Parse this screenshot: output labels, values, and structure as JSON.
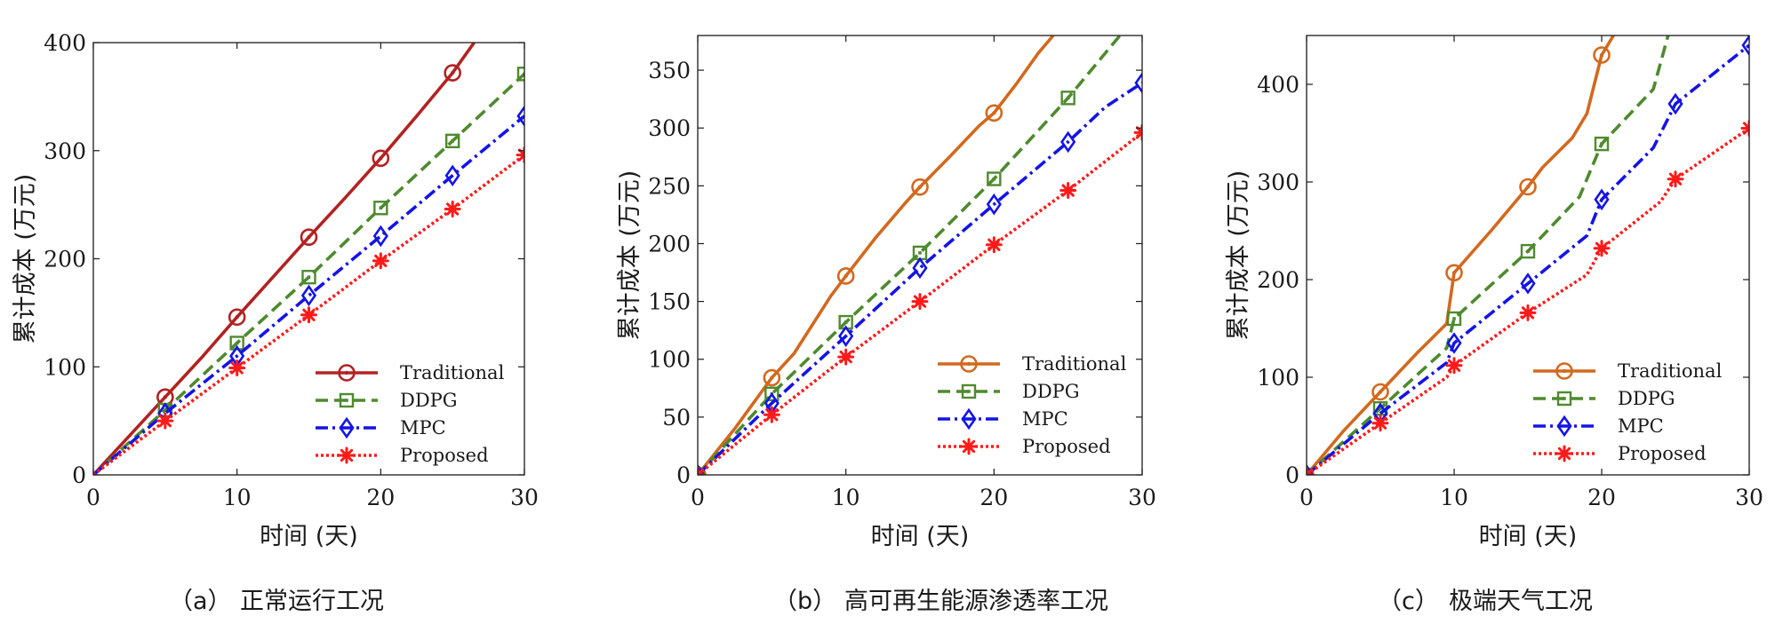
{
  "series_style": [
    {
      "name": "Traditional",
      "color": "#d2691e",
      "dash": "",
      "marker": "circle-dot"
    },
    {
      "name": "DDPG",
      "color": "#4e8a2e",
      "dash": "14,7",
      "marker": "square-dot"
    },
    {
      "name": "MPC",
      "color": "#1414e6",
      "dash": "14,5,3,5",
      "marker": "diamond"
    },
    {
      "name": "Proposed",
      "color": "#ff1a1a",
      "dash": "3,3",
      "marker": "asterisk"
    }
  ],
  "chart_data": [
    {
      "type": "line",
      "caption_id": "（a）",
      "caption_text": "正常运行工况",
      "xlabel": "时间 (天)",
      "ylabel": "累计成本 (万元)",
      "xlim": [
        0,
        30
      ],
      "ylim": [
        0,
        400
      ],
      "xticks": [
        "0",
        "10",
        "20",
        "30"
      ],
      "xtick_values": [
        0,
        10,
        20,
        30
      ],
      "yticks": [
        "0",
        "100",
        "200",
        "300",
        "400"
      ],
      "ytick_values": [
        0,
        100,
        200,
        300,
        400
      ],
      "legend": [
        "Traditional",
        "DDPG",
        "MPC",
        "Proposed"
      ],
      "series": [
        {
          "name": "Traditional",
          "color": "#b22222",
          "x": [
            0,
            2.5,
            5,
            7.5,
            10,
            12.5,
            15,
            17.5,
            20,
            22.5,
            25,
            26.5
          ],
          "y": [
            0,
            36,
            72,
            108,
            146,
            183,
            220,
            256,
            293,
            332,
            372,
            400
          ],
          "markers_x": [
            5,
            10,
            15,
            20,
            25
          ],
          "markers_y": [
            72,
            146,
            220,
            293,
            372
          ]
        },
        {
          "name": "DDPG",
          "x": [
            0,
            5,
            10,
            15,
            20,
            25,
            30
          ],
          "y": [
            0,
            60,
            122,
            183,
            247,
            309,
            371
          ],
          "markers_x": [
            5,
            10,
            15,
            20,
            25,
            30
          ],
          "markers_y": [
            60,
            122,
            183,
            247,
            309,
            371
          ]
        },
        {
          "name": "MPC",
          "x": [
            0,
            5,
            10,
            15,
            20,
            25,
            30
          ],
          "y": [
            0,
            57,
            110,
            166,
            221,
            277,
            332
          ],
          "markers_x": [
            5,
            10,
            15,
            20,
            25,
            30
          ],
          "markers_y": [
            57,
            110,
            166,
            221,
            277,
            332
          ]
        },
        {
          "name": "Proposed",
          "x": [
            0,
            5,
            10,
            15,
            20,
            25,
            30
          ],
          "y": [
            0,
            50,
            99,
            148,
            198,
            246,
            296
          ],
          "markers_x": [
            5,
            10,
            15,
            20,
            25,
            30
          ],
          "markers_y": [
            50,
            99,
            148,
            198,
            246,
            296
          ]
        }
      ]
    },
    {
      "type": "line",
      "caption_id": "（b）",
      "caption_text": "高可再生能源渗透率工况",
      "xlabel": "时间 (天)",
      "ylabel": "累计成本 (万元)",
      "xlim": [
        0,
        30
      ],
      "ylim": [
        0,
        380
      ],
      "xticks": [
        "0",
        "10",
        "20",
        "30"
      ],
      "xtick_values": [
        0,
        10,
        20,
        30
      ],
      "yticks": [
        "0",
        "50",
        "100",
        "150",
        "200",
        "250",
        "300",
        "350"
      ],
      "ytick_values": [
        0,
        50,
        100,
        150,
        200,
        250,
        300,
        350
      ],
      "legend": [
        "Traditional",
        "DDPG",
        "MPC",
        "Proposed"
      ],
      "series": [
        {
          "name": "Traditional",
          "x": [
            0,
            2.5,
            5,
            6.5,
            8,
            9,
            10,
            12,
            14,
            15,
            17,
            19,
            20,
            21.5,
            23,
            24
          ],
          "y": [
            0,
            40,
            84,
            105,
            135,
            155,
            172,
            205,
            235,
            249,
            275,
            302,
            313,
            338,
            365,
            380
          ],
          "markers_x": [
            0,
            5,
            10,
            15,
            20
          ],
          "markers_y": [
            0,
            84,
            172,
            249,
            313
          ]
        },
        {
          "name": "DDPG",
          "x": [
            0,
            5,
            10,
            15,
            20,
            25,
            28.5
          ],
          "y": [
            0,
            70,
            132,
            192,
            256,
            326,
            380
          ],
          "markers_x": [
            0,
            5,
            10,
            15,
            20,
            25
          ],
          "markers_y": [
            0,
            70,
            132,
            192,
            256,
            326
          ]
        },
        {
          "name": "MPC",
          "x": [
            0,
            5,
            10,
            15,
            20,
            25,
            27.5,
            30
          ],
          "y": [
            0,
            62,
            120,
            179,
            234,
            288,
            318,
            339
          ],
          "markers_x": [
            0,
            5,
            10,
            15,
            20,
            25,
            30
          ],
          "markers_y": [
            0,
            62,
            120,
            179,
            234,
            288,
            339
          ]
        },
        {
          "name": "Proposed",
          "x": [
            0,
            5,
            10,
            15,
            20,
            25,
            30
          ],
          "y": [
            0,
            52,
            102,
            150,
            199,
            246,
            296
          ],
          "markers_x": [
            0,
            5,
            10,
            15,
            20,
            25,
            30
          ],
          "markers_y": [
            0,
            52,
            102,
            150,
            199,
            246,
            296
          ]
        }
      ]
    },
    {
      "type": "line",
      "caption_id": "（c）",
      "caption_text": "极端天气工况",
      "xlabel": "时间 (天)",
      "ylabel": "累计成本 (万元)",
      "xlim": [
        0,
        30
      ],
      "ylim": [
        0,
        450
      ],
      "xticks": [
        "0",
        "10",
        "20",
        "30"
      ],
      "xtick_values": [
        0,
        10,
        20,
        30
      ],
      "yticks": [
        "0",
        "100",
        "200",
        "300",
        "400"
      ],
      "ytick_values": [
        0,
        100,
        200,
        300,
        400
      ],
      "legend": [
        "Traditional",
        "DDPG",
        "MPC",
        "Proposed"
      ],
      "series": [
        {
          "name": "Traditional",
          "x": [
            0,
            2.5,
            5,
            7.5,
            9.5,
            10,
            12.5,
            15,
            16,
            18,
            19,
            20,
            20.8
          ],
          "y": [
            0,
            45,
            85,
            125,
            155,
            207,
            250,
            295,
            315,
            345,
            370,
            430,
            450
          ],
          "markers_x": [
            5,
            10,
            15,
            20
          ],
          "markers_y": [
            85,
            207,
            295,
            430
          ]
        },
        {
          "name": "DDPG",
          "x": [
            0,
            5,
            9.5,
            10,
            15,
            18.5,
            20,
            23.5,
            24.5
          ],
          "y": [
            0,
            68,
            130,
            160,
            229,
            285,
            339,
            395,
            450
          ],
          "markers_x": [
            0,
            5,
            10,
            15,
            20
          ],
          "markers_y": [
            0,
            68,
            160,
            229,
            339
          ]
        },
        {
          "name": "MPC",
          "x": [
            0,
            5,
            9.5,
            10,
            15,
            19,
            20,
            23.5,
            24.5,
            25,
            30
          ],
          "y": [
            0,
            63,
            115,
            135,
            196,
            245,
            282,
            335,
            365,
            380,
            440
          ],
          "markers_x": [
            0,
            5,
            10,
            15,
            20,
            25,
            30
          ],
          "markers_y": [
            0,
            63,
            135,
            196,
            282,
            380,
            440
          ]
        },
        {
          "name": "Proposed",
          "x": [
            0,
            5,
            9.5,
            10,
            15,
            19,
            20,
            24,
            25,
            30
          ],
          "y": [
            0,
            53,
            100,
            112,
            166,
            205,
            232,
            280,
            303,
            355
          ],
          "markers_x": [
            0,
            5,
            10,
            15,
            20,
            25,
            30
          ],
          "markers_y": [
            0,
            53,
            112,
            166,
            232,
            303,
            355
          ]
        }
      ]
    }
  ]
}
